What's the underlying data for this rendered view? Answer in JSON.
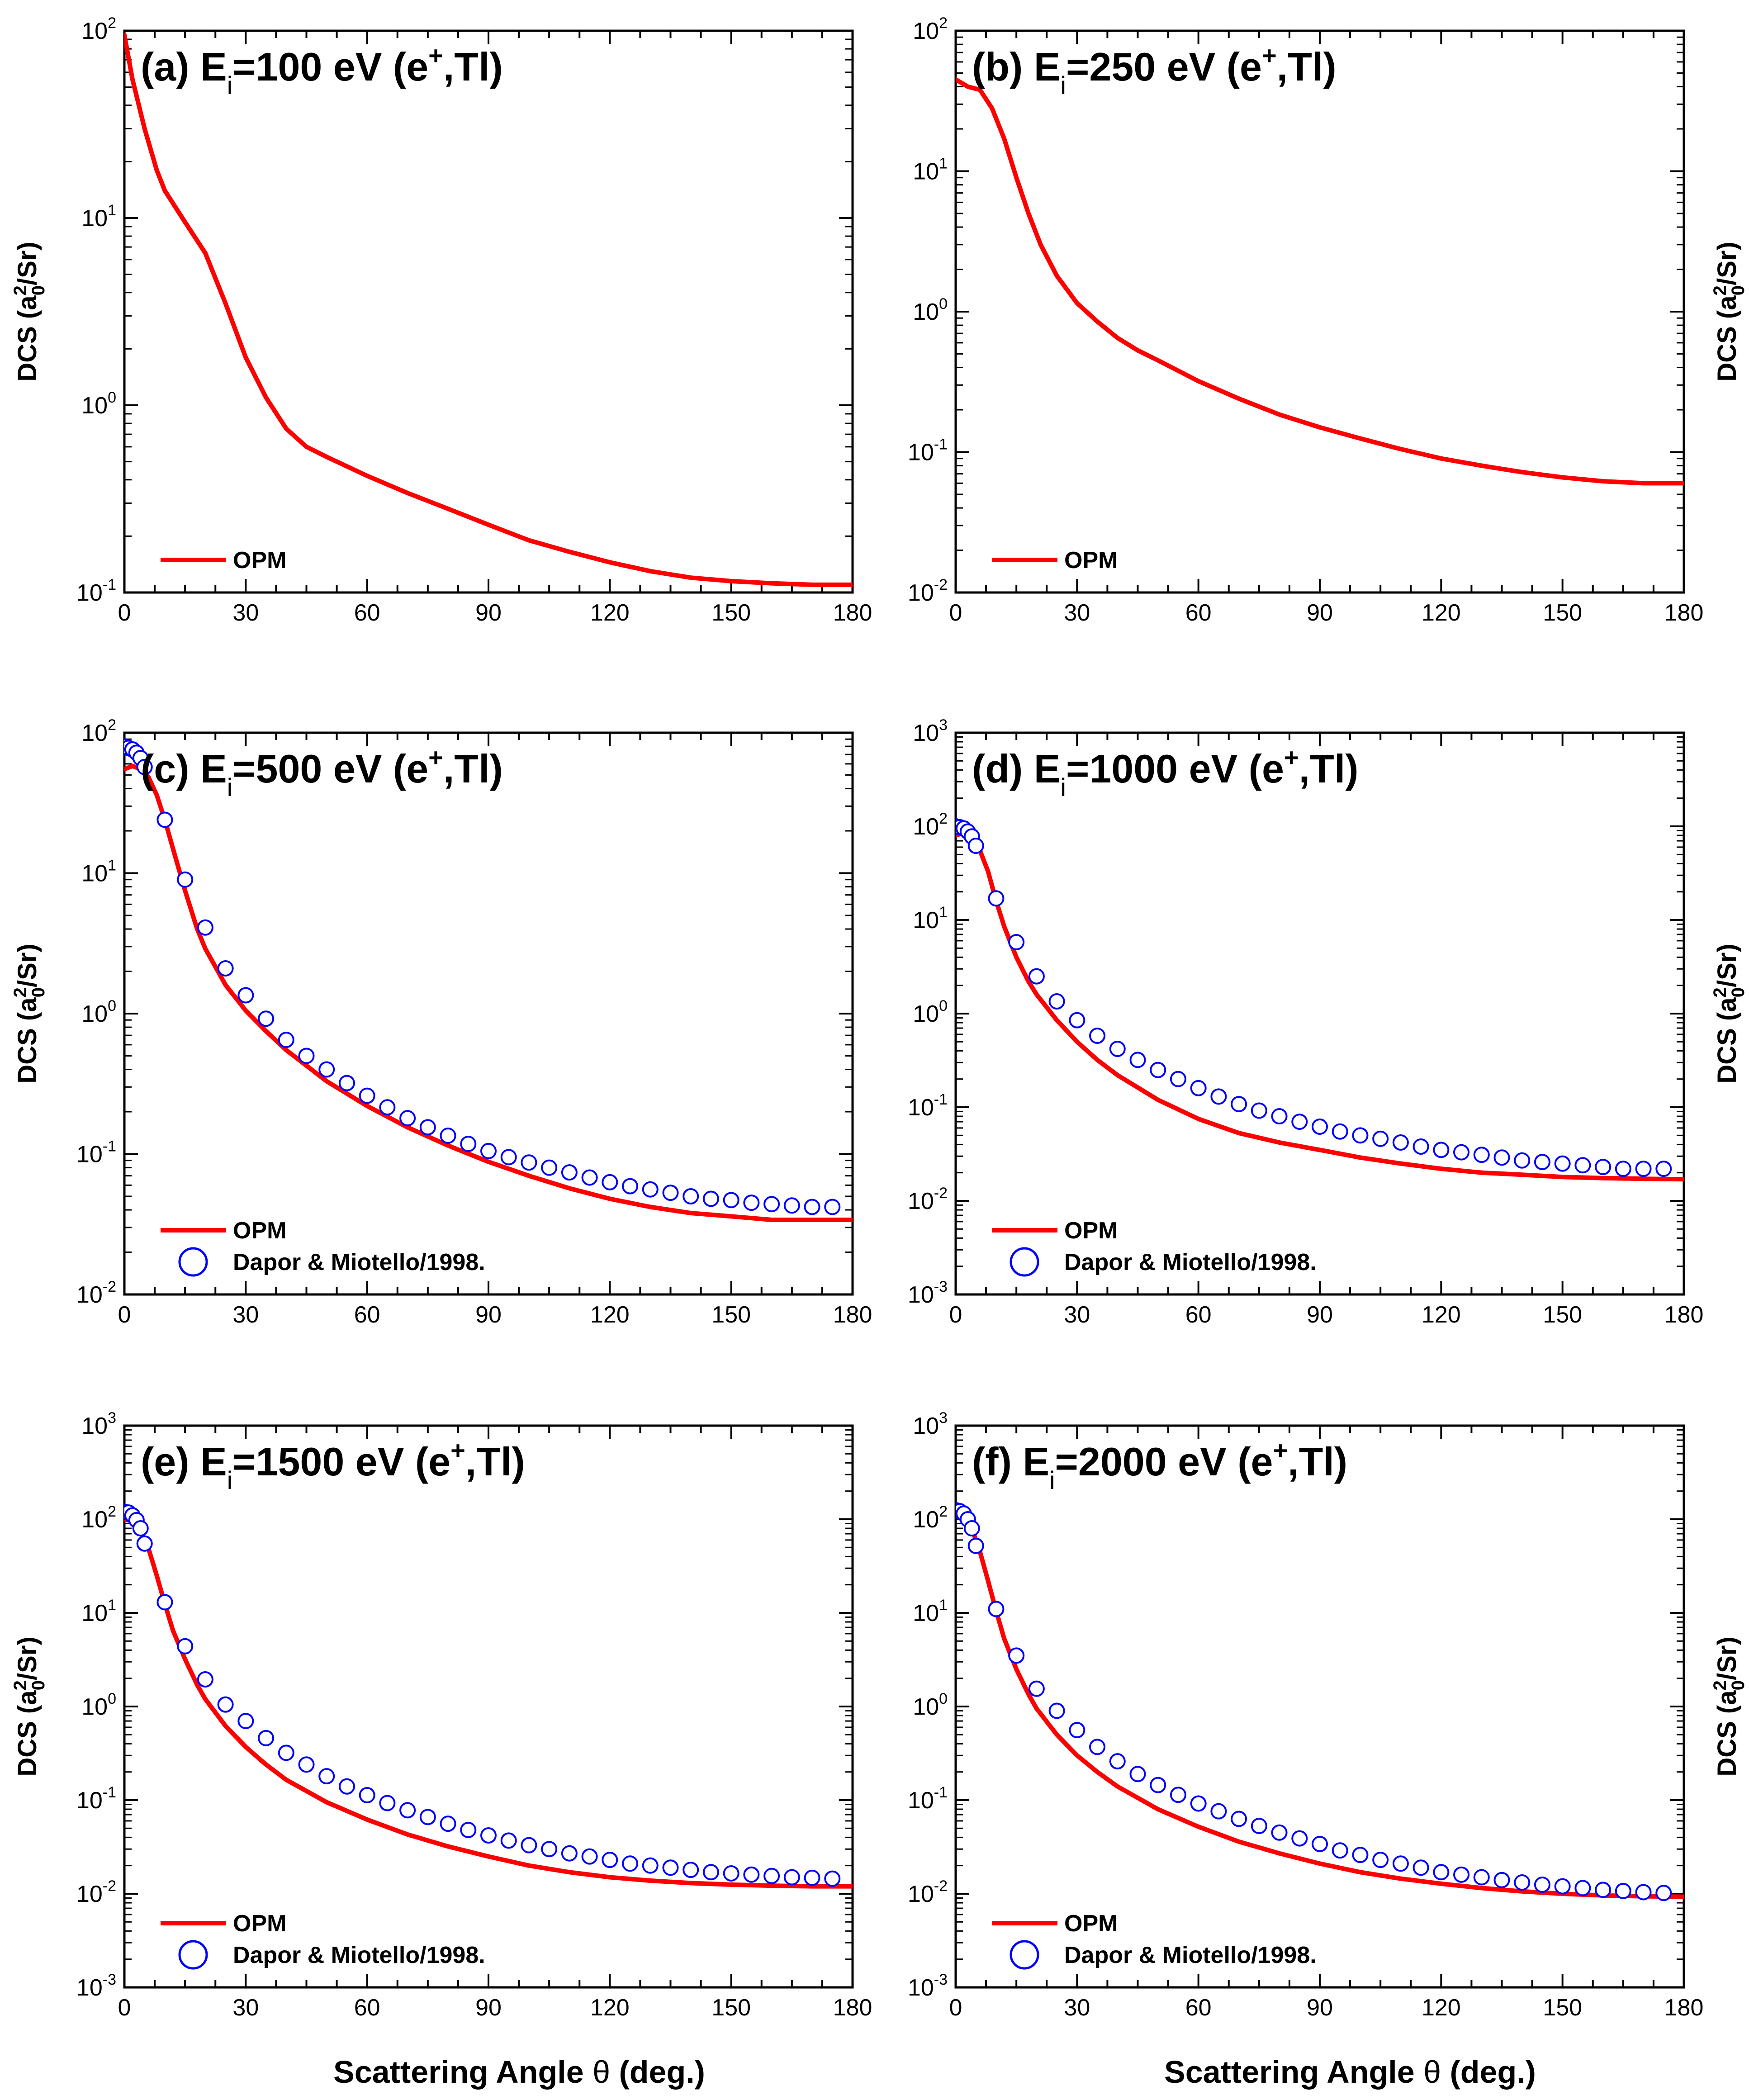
{
  "figure": {
    "x_axis_title": "Scattering Angle θ (deg.)",
    "y_axis_title": "DCS (a0²/Sr)",
    "x_axis_title_parts": {
      "pre": "Scattering Angle ",
      "theta": "θ",
      "post": " (deg.)"
    },
    "y_axis_title_parts": {
      "pre": "DCS (a",
      "sub": "0",
      "sup": "2",
      "post": "/Sr)"
    }
  },
  "colors": {
    "opm": "#ff0000",
    "dapor": "#0000ff",
    "axis": "#000000"
  },
  "chart_data": [
    {
      "id": "a",
      "type": "line",
      "title": "(a) Ei=100 eV (e+,Tl)",
      "title_parts": {
        "prefix": "(a) ",
        "E": "E",
        "sub": "i",
        "energy": "=100 eV (e",
        "sup": "+",
        "suffix": ",Tl)"
      },
      "xlabel": "",
      "ylabel": "DCS (a0²/Sr)",
      "xlim": [
        0,
        180
      ],
      "ylim": [
        0.1,
        100
      ],
      "yscale": "log",
      "xticks": [
        0,
        30,
        60,
        90,
        120,
        150,
        180
      ],
      "ydecades": [
        -1,
        0,
        1,
        2
      ],
      "legend_position": "bottom-left",
      "series": [
        {
          "name": "OPM",
          "style": "line",
          "x": [
            0,
            2,
            5,
            8,
            10,
            15,
            20,
            25,
            30,
            35,
            40,
            45,
            50,
            60,
            70,
            80,
            90,
            100,
            110,
            120,
            130,
            140,
            150,
            160,
            170,
            180
          ],
          "y": [
            95,
            55,
            30,
            18,
            14,
            9.5,
            6.5,
            3.5,
            1.8,
            1.1,
            0.75,
            0.6,
            0.53,
            0.42,
            0.34,
            0.28,
            0.23,
            0.19,
            0.165,
            0.145,
            0.13,
            0.12,
            0.115,
            0.112,
            0.11,
            0.11
          ]
        }
      ]
    },
    {
      "id": "b",
      "type": "line",
      "title": "(b) Ei=250 eV (e+,Tl)",
      "title_parts": {
        "prefix": "(b) ",
        "E": "E",
        "sub": "i",
        "energy": "=250 eV (e",
        "sup": "+",
        "suffix": ",Tl)"
      },
      "xlabel": "",
      "ylabel": "DCS (a0²/Sr)",
      "xlim": [
        0,
        180
      ],
      "ylim": [
        0.01,
        100
      ],
      "yscale": "log",
      "xticks": [
        0,
        30,
        60,
        90,
        120,
        150,
        180
      ],
      "ydecades": [
        -2,
        -1,
        0,
        1,
        2
      ],
      "legend_position": "bottom-left",
      "series": [
        {
          "name": "OPM",
          "style": "line",
          "x": [
            0,
            3,
            6,
            9,
            12,
            15,
            18,
            21,
            25,
            30,
            35,
            40,
            45,
            50,
            60,
            70,
            80,
            90,
            100,
            110,
            120,
            130,
            140,
            150,
            160,
            170,
            180
          ],
          "y": [
            45,
            40,
            38,
            28,
            17,
            9,
            5,
            3,
            1.8,
            1.15,
            0.85,
            0.65,
            0.53,
            0.45,
            0.32,
            0.24,
            0.185,
            0.15,
            0.125,
            0.105,
            0.09,
            0.08,
            0.072,
            0.066,
            0.062,
            0.06,
            0.06
          ]
        }
      ]
    },
    {
      "id": "c",
      "type": "line",
      "title": "(c) Ei=500 eV (e+,Tl)",
      "title_parts": {
        "prefix": "(c) ",
        "E": "E",
        "sub": "i",
        "energy": "=500 eV (e",
        "sup": "+",
        "suffix": ",Tl)"
      },
      "xlabel": "",
      "ylabel": "DCS (a0²/Sr)",
      "xlim": [
        0,
        180
      ],
      "ylim": [
        0.01,
        100
      ],
      "yscale": "log",
      "xticks": [
        0,
        30,
        60,
        90,
        120,
        150,
        180
      ],
      "ydecades": [
        -2,
        -1,
        0,
        1,
        2
      ],
      "legend_position": "bottom-left",
      "series": [
        {
          "name": "OPM",
          "style": "line",
          "x": [
            0,
            2,
            4,
            6,
            8,
            10,
            12,
            15,
            18,
            20,
            25,
            30,
            35,
            40,
            50,
            60,
            70,
            80,
            90,
            100,
            110,
            120,
            130,
            140,
            150,
            160,
            170,
            180
          ],
          "y": [
            55,
            58,
            55,
            48,
            36,
            24,
            15,
            7.5,
            4,
            2.9,
            1.6,
            1.05,
            0.75,
            0.55,
            0.33,
            0.22,
            0.155,
            0.115,
            0.088,
            0.07,
            0.057,
            0.048,
            0.042,
            0.038,
            0.036,
            0.034,
            0.034,
            0.034
          ]
        },
        {
          "name": "Dapor & Miotello/1998.",
          "style": "markers",
          "x": [
            0,
            1,
            2,
            3,
            4,
            5,
            10,
            15,
            20,
            25,
            30,
            35,
            40,
            45,
            50,
            55,
            60,
            65,
            70,
            75,
            80,
            85,
            90,
            95,
            100,
            105,
            110,
            115,
            120,
            125,
            130,
            135,
            140,
            145,
            150,
            155,
            160,
            165,
            170,
            175
          ],
          "y": [
            80,
            78,
            76,
            72,
            66,
            57,
            24,
            9,
            4.1,
            2.1,
            1.35,
            0.92,
            0.65,
            0.5,
            0.4,
            0.32,
            0.26,
            0.215,
            0.18,
            0.155,
            0.135,
            0.118,
            0.105,
            0.095,
            0.087,
            0.08,
            0.074,
            0.068,
            0.063,
            0.059,
            0.056,
            0.053,
            0.05,
            0.048,
            0.047,
            0.045,
            0.044,
            0.043,
            0.042,
            0.042
          ]
        }
      ]
    },
    {
      "id": "d",
      "type": "line",
      "title": "(d) Ei=1000 eV (e+,Tl)",
      "title_parts": {
        "prefix": "(d) ",
        "E": "E",
        "sub": "i",
        "energy": "=1000 eV (e",
        "sup": "+",
        "suffix": ",Tl)"
      },
      "xlabel": "",
      "ylabel": "DCS (a0²/Sr)",
      "xlim": [
        0,
        180
      ],
      "ylim": [
        0.001,
        1000
      ],
      "yscale": "log",
      "xticks": [
        0,
        30,
        60,
        90,
        120,
        150,
        180
      ],
      "ydecades": [
        -3,
        -2,
        -1,
        0,
        1,
        2,
        3
      ],
      "legend_position": "bottom-left",
      "series": [
        {
          "name": "OPM",
          "style": "line",
          "x": [
            0,
            2,
            4,
            6,
            8,
            10,
            12,
            15,
            18,
            20,
            25,
            30,
            35,
            40,
            50,
            60,
            70,
            80,
            90,
            100,
            110,
            120,
            130,
            140,
            150,
            160,
            170,
            180
          ],
          "y": [
            80,
            85,
            75,
            55,
            33,
            16,
            8.5,
            4,
            2.2,
            1.6,
            0.85,
            0.5,
            0.32,
            0.22,
            0.12,
            0.075,
            0.053,
            0.042,
            0.035,
            0.029,
            0.025,
            0.022,
            0.02,
            0.019,
            0.018,
            0.0175,
            0.0172,
            0.017
          ]
        },
        {
          "name": "Dapor & Miotello/1998.",
          "style": "markers",
          "x": [
            0,
            1,
            2,
            3,
            4,
            5,
            10,
            15,
            20,
            25,
            30,
            35,
            40,
            45,
            50,
            55,
            60,
            65,
            70,
            75,
            80,
            85,
            90,
            95,
            100,
            105,
            110,
            115,
            120,
            125,
            130,
            135,
            140,
            145,
            150,
            155,
            160,
            165,
            170,
            175
          ],
          "y": [
            100,
            98,
            95,
            88,
            78,
            62,
            17,
            5.8,
            2.5,
            1.35,
            0.85,
            0.58,
            0.42,
            0.32,
            0.25,
            0.2,
            0.16,
            0.13,
            0.108,
            0.092,
            0.08,
            0.07,
            0.062,
            0.055,
            0.05,
            0.046,
            0.042,
            0.038,
            0.035,
            0.033,
            0.031,
            0.029,
            0.027,
            0.026,
            0.025,
            0.024,
            0.023,
            0.022,
            0.022,
            0.022
          ]
        }
      ]
    },
    {
      "id": "e",
      "type": "line",
      "title": "(e) Ei=1500 eV (e+,Tl)",
      "title_parts": {
        "prefix": "(e) ",
        "E": "E",
        "sub": "i",
        "energy": "=1500 eV (e",
        "sup": "+",
        "suffix": ",Tl)"
      },
      "xlabel": "Scattering Angle θ (deg.)",
      "ylabel": "DCS (a0²/Sr)",
      "xlim": [
        0,
        180
      ],
      "ylim": [
        0.001,
        1000
      ],
      "yscale": "log",
      "xticks": [
        0,
        30,
        60,
        90,
        120,
        150,
        180
      ],
      "ydecades": [
        -3,
        -2,
        -1,
        0,
        1,
        2,
        3
      ],
      "legend_position": "bottom-left",
      "series": [
        {
          "name": "OPM",
          "style": "line",
          "x": [
            0,
            2,
            4,
            6,
            8,
            10,
            12,
            15,
            18,
            20,
            25,
            30,
            35,
            40,
            50,
            60,
            70,
            80,
            90,
            100,
            110,
            120,
            130,
            140,
            150,
            160,
            170,
            180
          ],
          "y": [
            100,
            95,
            75,
            48,
            25,
            12.5,
            6.5,
            3.2,
            1.7,
            1.2,
            0.62,
            0.37,
            0.24,
            0.165,
            0.095,
            0.062,
            0.043,
            0.032,
            0.025,
            0.02,
            0.017,
            0.015,
            0.0138,
            0.013,
            0.0125,
            0.0122,
            0.012,
            0.012
          ]
        },
        {
          "name": "Dapor & Miotello/1998.",
          "style": "markers",
          "x": [
            0,
            1,
            2,
            3,
            4,
            5,
            10,
            15,
            20,
            25,
            30,
            35,
            40,
            45,
            50,
            55,
            60,
            65,
            70,
            75,
            80,
            85,
            90,
            95,
            100,
            105,
            110,
            115,
            120,
            125,
            130,
            135,
            140,
            145,
            150,
            155,
            160,
            165,
            170,
            175
          ],
          "y": [
            120,
            118,
            110,
            98,
            80,
            55,
            13,
            4.4,
            1.95,
            1.05,
            0.7,
            0.46,
            0.32,
            0.24,
            0.18,
            0.14,
            0.113,
            0.093,
            0.078,
            0.066,
            0.056,
            0.048,
            0.042,
            0.037,
            0.033,
            0.03,
            0.027,
            0.025,
            0.023,
            0.021,
            0.02,
            0.019,
            0.018,
            0.017,
            0.0165,
            0.016,
            0.0155,
            0.015,
            0.0148,
            0.0145
          ]
        }
      ]
    },
    {
      "id": "f",
      "type": "line",
      "title": "(f) Ei=2000 eV (e+,Tl)",
      "title_parts": {
        "prefix": "(f) ",
        "E": "E",
        "sub": "i",
        "energy": "=2000 eV (e",
        "sup": "+",
        "suffix": ",Tl)"
      },
      "xlabel": "Scattering Angle θ (deg.)",
      "ylabel": "DCS (a0²/Sr)",
      "xlim": [
        0,
        180
      ],
      "ylim": [
        0.001,
        1000
      ],
      "yscale": "log",
      "xticks": [
        0,
        30,
        60,
        90,
        120,
        150,
        180
      ],
      "ydecades": [
        -3,
        -2,
        -1,
        0,
        1,
        2,
        3
      ],
      "legend_position": "bottom-left",
      "series": [
        {
          "name": "OPM",
          "style": "line",
          "x": [
            0,
            2,
            4,
            6,
            8,
            10,
            12,
            15,
            18,
            20,
            25,
            30,
            35,
            40,
            50,
            60,
            70,
            80,
            90,
            100,
            110,
            120,
            130,
            140,
            150,
            160,
            170,
            180
          ],
          "y": [
            110,
            105,
            80,
            45,
            22,
            10.5,
            5.3,
            2.5,
            1.35,
            0.95,
            0.5,
            0.3,
            0.2,
            0.14,
            0.08,
            0.052,
            0.036,
            0.027,
            0.021,
            0.017,
            0.0145,
            0.0128,
            0.0115,
            0.0106,
            0.01,
            0.0096,
            0.0094,
            0.0093
          ]
        },
        {
          "name": "Dapor & Miotello/1998.",
          "style": "markers",
          "x": [
            0,
            1,
            2,
            3,
            4,
            5,
            10,
            15,
            20,
            25,
            30,
            35,
            40,
            45,
            50,
            55,
            60,
            65,
            70,
            75,
            80,
            85,
            90,
            95,
            100,
            105,
            110,
            115,
            120,
            125,
            130,
            135,
            140,
            145,
            150,
            155,
            160,
            165,
            170,
            175
          ],
          "y": [
            125,
            122,
            115,
            100,
            80,
            52,
            11,
            3.5,
            1.55,
            0.9,
            0.56,
            0.37,
            0.26,
            0.19,
            0.145,
            0.114,
            0.092,
            0.076,
            0.063,
            0.053,
            0.045,
            0.039,
            0.034,
            0.029,
            0.026,
            0.023,
            0.021,
            0.019,
            0.017,
            0.016,
            0.015,
            0.014,
            0.0132,
            0.0125,
            0.012,
            0.0115,
            0.011,
            0.0107,
            0.0104,
            0.0102
          ]
        }
      ]
    }
  ]
}
